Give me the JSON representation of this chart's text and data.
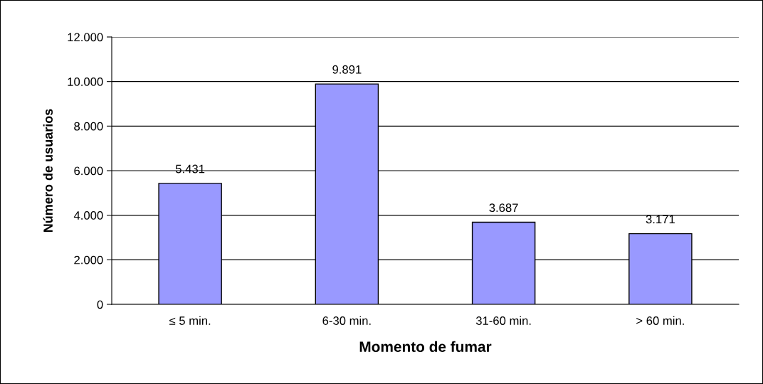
{
  "chart_data": {
    "type": "bar",
    "xlabel": "Momento de fumar",
    "ylabel": "Número de usuarios",
    "categories": [
      "≤ 5 min.",
      "6-30 min.",
      "31-60 min.",
      "> 60 min."
    ],
    "values": [
      5431,
      9891,
      3687,
      3171
    ],
    "value_labels": [
      "5.431",
      "9.891",
      "3.687",
      "3.171"
    ],
    "color": "#9999ff",
    "ylim": [
      0,
      12000
    ],
    "yticks": [
      {
        "value": 0,
        "label": "0"
      },
      {
        "value": 2000,
        "label": "2.000"
      },
      {
        "value": 4000,
        "label": "4.000"
      },
      {
        "value": 6000,
        "label": "6.000"
      },
      {
        "value": 8000,
        "label": "8.000"
      },
      {
        "value": 10000,
        "label": "10.000"
      },
      {
        "value": 12000,
        "label": "12.000"
      }
    ],
    "grid": "y",
    "legend": false
  }
}
